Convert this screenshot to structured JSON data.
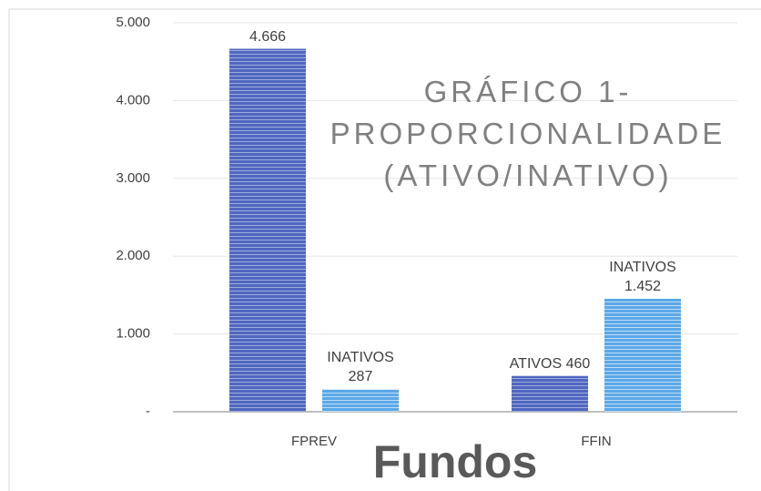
{
  "chart_data": {
    "type": "bar",
    "title": "GRÁFICO 1- PROPORCIONALIDADE (ATIVO/INATIVO)",
    "x_label": "Fundos",
    "categories": [
      "FPREV",
      "FFIN"
    ],
    "series": [
      {
        "color": "#4f67c0",
        "values": [
          4666,
          460
        ],
        "value_labels": [
          "4.666",
          "ATIVOS 460"
        ]
      },
      {
        "color": "#5ba8e8",
        "values": [
          287,
          1452
        ],
        "value_labels": [
          "INATIVOS 287",
          "INATIVOS 1.452"
        ]
      }
    ],
    "ylim": [
      0,
      5000
    ],
    "yticks": [
      {
        "value": 0,
        "label": "-"
      },
      {
        "value": 1000,
        "label": "1.000"
      },
      {
        "value": 2000,
        "label": "2.000"
      },
      {
        "value": 3000,
        "label": "3.000"
      },
      {
        "value": 4000,
        "label": "4.000"
      },
      {
        "value": 5000,
        "label": "5.000"
      }
    ],
    "grid": true
  }
}
